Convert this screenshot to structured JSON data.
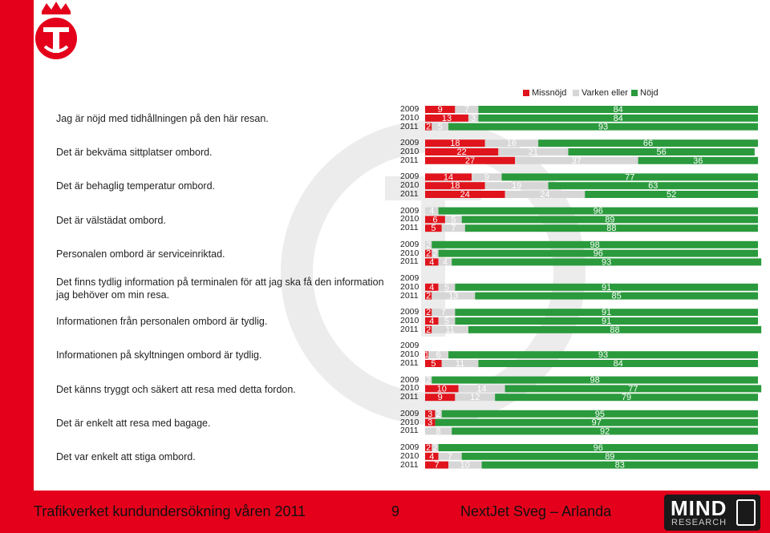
{
  "footer": {
    "title": "Trafikverket kundundersökning våren 2011",
    "page_number": "9",
    "route": "NextJet  Sveg – Arlanda",
    "logo_text_top": "MIND",
    "logo_text_bottom": "RESEARCH"
  },
  "colors": {
    "missnojd": "#e0141c",
    "varken": "#d6d6d6",
    "nojd": "#2a9a3c",
    "brand_red": "#e4001b"
  },
  "chart_data": {
    "type": "bar",
    "orientation": "horizontal",
    "stacked": true,
    "unit": "percent",
    "xlim": [
      0,
      100
    ],
    "legend": {
      "placement": "top-right",
      "entries": [
        "Missnöjd",
        "Varken eller",
        "Nöjd"
      ]
    },
    "years": [
      "2009",
      "2010",
      "2011"
    ],
    "questions": [
      {
        "label": "Jag är nöjd med tidhållningen på den här resan.",
        "rows": [
          {
            "year": "2009",
            "missnojd": 9,
            "varken": 7,
            "nojd": 84
          },
          {
            "year": "2010",
            "missnojd": 13,
            "varken": 3,
            "nojd": 84
          },
          {
            "year": "2011",
            "missnojd": 2,
            "varken": 5,
            "nojd": 93
          }
        ]
      },
      {
        "label": "Det är bekväma sittplatser ombord.",
        "rows": [
          {
            "year": "2009",
            "missnojd": 18,
            "varken": 16,
            "nojd": 66
          },
          {
            "year": "2010",
            "missnojd": 22,
            "varken": 21,
            "nojd": 56
          },
          {
            "year": "2011",
            "missnojd": 27,
            "varken": 37,
            "nojd": 36
          }
        ]
      },
      {
        "label": "Det är behaglig temperatur ombord.",
        "rows": [
          {
            "year": "2009",
            "missnojd": 14,
            "varken": 9,
            "nojd": 77
          },
          {
            "year": "2010",
            "missnojd": 18,
            "varken": 19,
            "nojd": 63
          },
          {
            "year": "2011",
            "missnojd": 24,
            "varken": 24,
            "nojd": 52
          }
        ]
      },
      {
        "label": "Det är välstädat ombord.",
        "rows": [
          {
            "year": "2009",
            "missnojd": 0,
            "varken": 4,
            "nojd": 96
          },
          {
            "year": "2010",
            "missnojd": 6,
            "varken": 5,
            "nojd": 89
          },
          {
            "year": "2011",
            "missnojd": 5,
            "varken": 7,
            "nojd": 88
          }
        ]
      },
      {
        "label": "Personalen ombord är serviceinriktad.",
        "rows": [
          {
            "year": "2009",
            "missnojd": 0,
            "varken": 2,
            "nojd": 98
          },
          {
            "year": "2010",
            "missnojd": 2,
            "varken": 2,
            "nojd": 96
          },
          {
            "year": "2011",
            "missnojd": 4,
            "varken": 4,
            "nojd": 93
          }
        ]
      },
      {
        "label": "Det finns tydlig information på terminalen för att jag ska få den information jag behöver om min resa.",
        "rows": [
          {
            "year": "2009",
            "missnojd": 0,
            "varken": 0,
            "nojd": 0
          },
          {
            "year": "2010",
            "missnojd": 4,
            "varken": 5,
            "nojd": 91
          },
          {
            "year": "2011",
            "missnojd": 2,
            "varken": 13,
            "nojd": 85
          }
        ]
      },
      {
        "label": "Informationen från personalen ombord är tydlig.",
        "rows": [
          {
            "year": "2009",
            "missnojd": 2,
            "varken": 7,
            "nojd": 91
          },
          {
            "year": "2010",
            "missnojd": 4,
            "varken": 5,
            "nojd": 91
          },
          {
            "year": "2011",
            "missnojd": 2,
            "varken": 11,
            "nojd": 88
          }
        ]
      },
      {
        "label": "Informationen på skyltningen ombord är tydlig.",
        "rows": [
          {
            "year": "2009",
            "missnojd": 0,
            "varken": 0,
            "nojd": 0
          },
          {
            "year": "2010",
            "missnojd": 1,
            "varken": 6,
            "nojd": 93
          },
          {
            "year": "2011",
            "missnojd": 5,
            "varken": 11,
            "nojd": 84
          }
        ]
      },
      {
        "label": "Det känns tryggt och säkert att resa med detta fordon.",
        "rows": [
          {
            "year": "2009",
            "missnojd": 0,
            "varken": 2,
            "nojd": 98
          },
          {
            "year": "2010",
            "missnojd": 10,
            "varken": 14,
            "nojd": 77
          },
          {
            "year": "2011",
            "missnojd": 9,
            "varken": 12,
            "nojd": 79
          }
        ]
      },
      {
        "label": "Det är enkelt att resa med bagage.",
        "rows": [
          {
            "year": "2009",
            "missnojd": 3,
            "varken": 2,
            "nojd": 95
          },
          {
            "year": "2010",
            "missnojd": 3,
            "varken": 0,
            "nojd": 97
          },
          {
            "year": "2011",
            "missnojd": 0,
            "varken": 8,
            "nojd": 92
          }
        ]
      },
      {
        "label": "Det var enkelt att stiga ombord.",
        "rows": [
          {
            "year": "2009",
            "missnojd": 2,
            "varken": 2,
            "nojd": 96
          },
          {
            "year": "2010",
            "missnojd": 4,
            "varken": 7,
            "nojd": 89
          },
          {
            "year": "2011",
            "missnojd": 7,
            "varken": 10,
            "nojd": 83
          }
        ]
      }
    ]
  }
}
